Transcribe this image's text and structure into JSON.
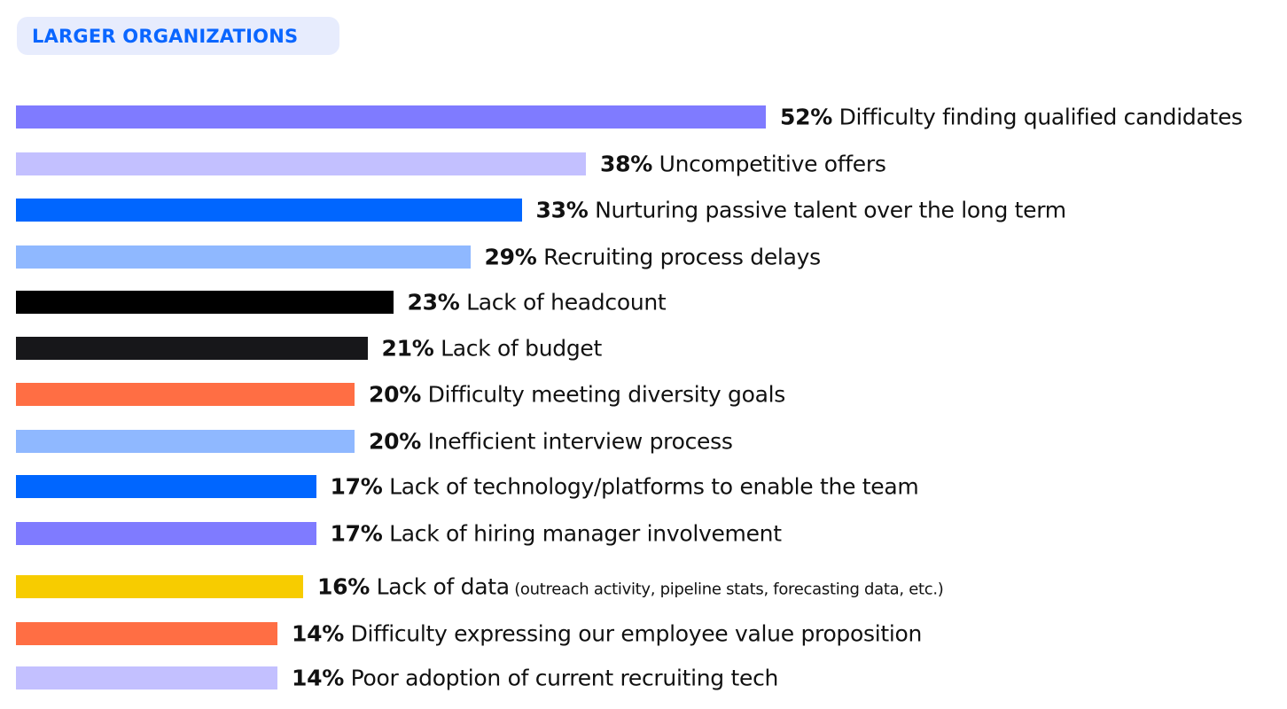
{
  "badge": "LARGER ORGANIZATIONS",
  "chart_data": {
    "type": "bar",
    "orientation": "horizontal",
    "title": "LARGER ORGANIZATIONS",
    "categories": [
      "Difficulty finding qualified candidates",
      "Uncompetitive offers",
      "Nurturing passive talent over the long term",
      "Recruiting process delays",
      "Lack of headcount",
      "Lack of budget",
      "Difficulty meeting diversity goals",
      "Inefficient interview process",
      "Lack of technology/platforms to enable the team",
      "Lack of hiring manager involvement",
      "Lack of data",
      "Difficulty expressing our employee value proposition",
      "Poor adoption of current recruiting tech"
    ],
    "notes": [
      "",
      "",
      "",
      "",
      "",
      "",
      "",
      "",
      "",
      "",
      "(outreach activity, pipeline stats, forecasting data, etc.)",
      "",
      ""
    ],
    "values": [
      52,
      38,
      33,
      29,
      23,
      21,
      20,
      20,
      17,
      17,
      16,
      14,
      14
    ],
    "value_labels": [
      "52%",
      "38%",
      "33%",
      "29%",
      "23%",
      "21%",
      "20%",
      "20%",
      "17%",
      "17%",
      "16%",
      "14%",
      "14%"
    ],
    "colors": [
      "#7f7bff",
      "#c3c0ff",
      "#0066ff",
      "#8fb8ff",
      "#000000",
      "#17171a",
      "#ff6e44",
      "#8fb8ff",
      "#0066ff",
      "#7f7bff",
      "#f7cc00",
      "#ff6e44",
      "#c3c0ff"
    ],
    "unit": "%",
    "grid": false,
    "legend": "none"
  }
}
